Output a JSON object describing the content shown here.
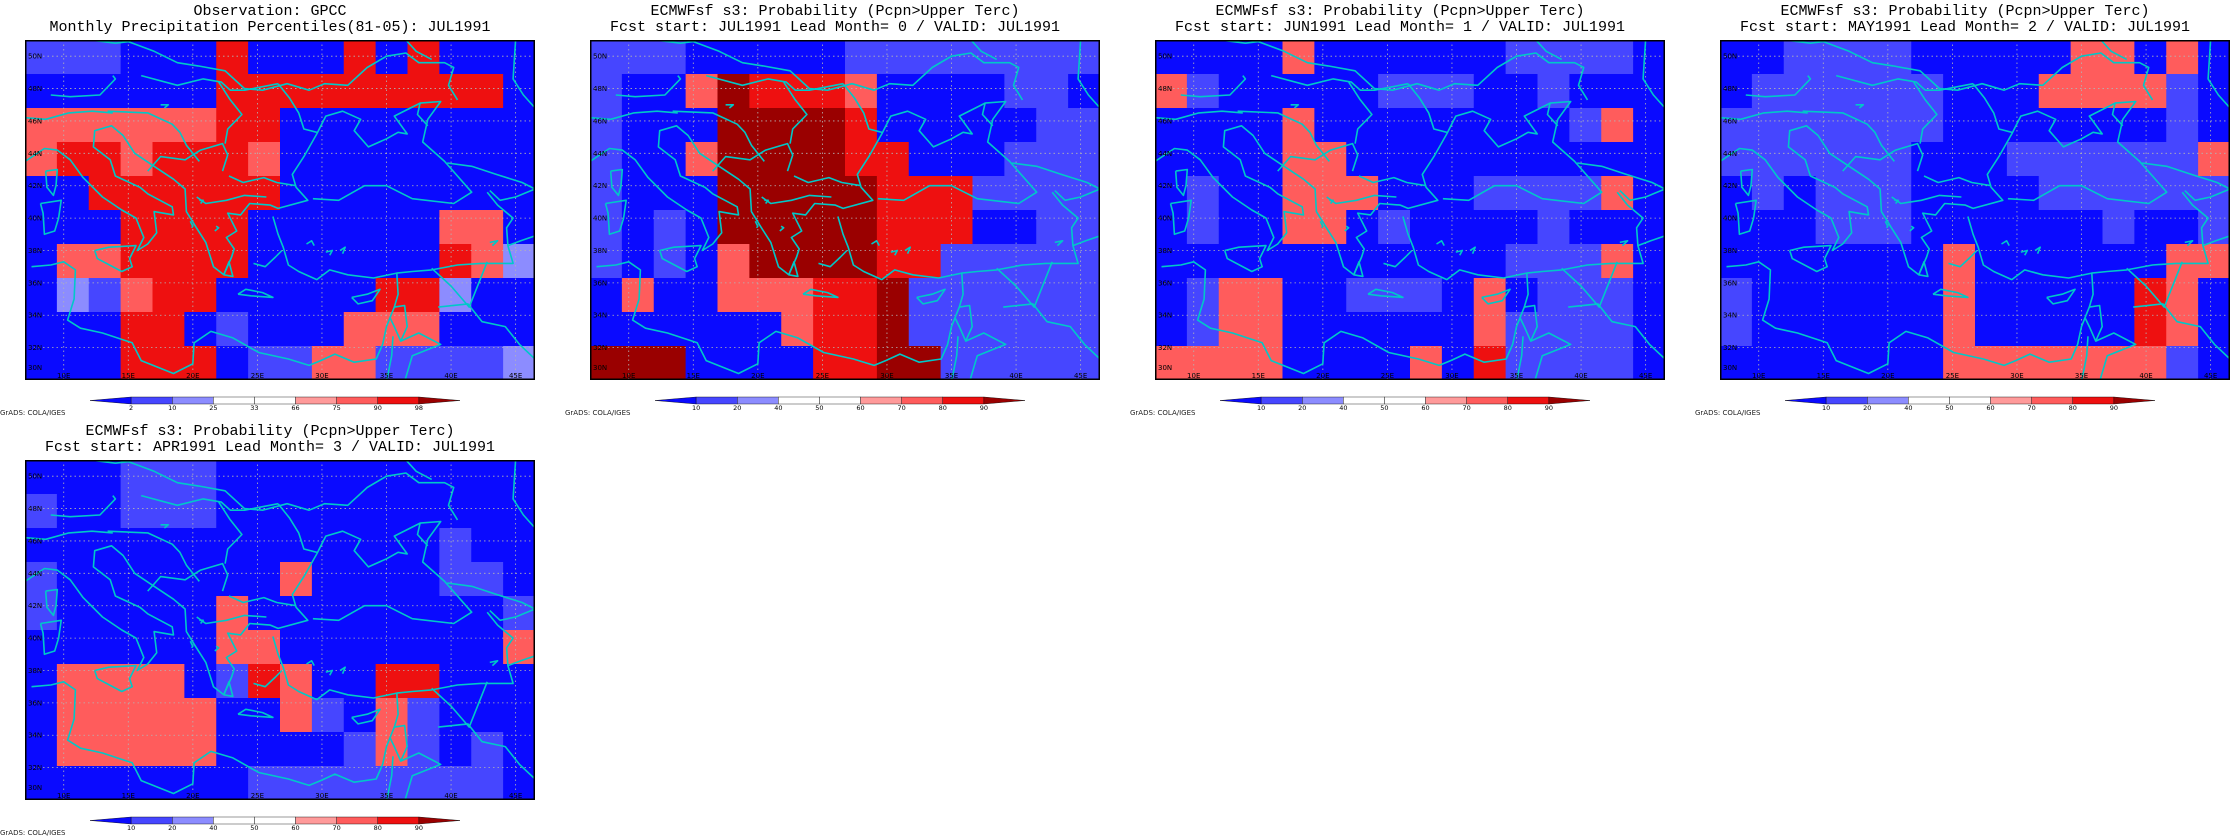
{
  "colors": {
    "coast": "#00c8c8",
    "grid": "#b4b4b4",
    "scale": [
      "#0a0aff",
      "#4646ff",
      "#8c8cff",
      "#ffffff",
      "#ff9a9a",
      "#ff5c5c",
      "#ee1010",
      "#9a0000"
    ]
  },
  "map_ticks": {
    "lon": [
      "10E",
      "15E",
      "20E",
      "25E",
      "30E",
      "35E",
      "40E",
      "45E"
    ],
    "lat": [
      "30N",
      "32N",
      "34N",
      "36N",
      "38N",
      "40N",
      "42N",
      "44N",
      "46N",
      "48N",
      "50N"
    ]
  },
  "credit": "GrADS: COLA/IGES",
  "panels": [
    {
      "id": "obs",
      "title1": "Observation: GPCC",
      "title2": "Monthly Precipitation Percentiles(81-05): JUL1991",
      "colorbar_labels": [
        "2",
        "10",
        "25",
        "33",
        "66",
        "75",
        "90",
        "98"
      ],
      "grid": [
        "1110006000606000",
        "0000006666666660",
        "5555556600000000",
        "5665666500000000",
        "0066666600000000",
        "0006666000000550",
        "0556666000000652",
        "0215660000066200",
        "0006601000555000",
        "0006660115511112"
      ]
    },
    {
      "id": "lead0",
      "title1": "ECMWFsf s3: Probability (Pcpn>Upper Terc)",
      "title2": "Fcst start: JUL1991  Lead Month= 0 / VALID: JUL1991",
      "colorbar_labels": [
        "10",
        "20",
        "40",
        "50",
        "60",
        "70",
        "80",
        "90"
      ],
      "grid": [
        "1110000011111111",
        "1005766650000110",
        "1000777760000011",
        "1005777766000111",
        "1000777776661111",
        "1010777776660011",
        "1010577776611111",
        "0500555667111111",
        "0000005667111111",
        "7770000667711111"
      ]
    },
    {
      "id": "lead1",
      "title1": "ECMWFsf s3: Probability (Pcpn>Upper Terc)",
      "title2": "Fcst start: JUN1991  Lead Month= 1 / VALID: JUL1991",
      "colorbar_labels": [
        "10",
        "20",
        "40",
        "50",
        "60",
        "70",
        "80",
        "90"
      ],
      "grid": [
        "0000500000011110",
        "5100000111001000",
        "0000500000000150",
        "0000550000000000",
        "0100555000111150",
        "0100550100001000",
        "0000000000011150",
        "0155001110501110",
        "0155000000511110",
        "5555000050611110"
      ]
    },
    {
      "id": "lead2",
      "title1": "ECMWFsf s3: Probability (Pcpn>Upper Terc)",
      "title2": "Fcst start: MAY1991  Lead Month= 2 / VALID: JUL1991",
      "colorbar_labels": [
        "10",
        "20",
        "40",
        "50",
        "60",
        "70",
        "80",
        "90"
      ],
      "grid": [
        "0011110000055050",
        "0111111000555510",
        "1111111000000010",
        "1111110001111115",
        "0101110000111111",
        "0001110000001001",
        "0000000500000055",
        "1000000500000650",
        "1000000500000650",
        "0000000555555510"
      ]
    },
    {
      "id": "lead3",
      "title1": "ECMWFsf s3: Probability (Pcpn>Upper Terc)",
      "title2": "Fcst start: APR1991  Lead Month= 3 / VALID: JUL1991",
      "colorbar_labels": [
        "10",
        "20",
        "40",
        "50",
        "60",
        "70",
        "80",
        "90"
      ],
      "grid": [
        "0001110000000000",
        "1001110000000000",
        "0000000000000100",
        "1000000050000110",
        "1000005000000001",
        "0000005500000005",
        "0555501650066000",
        "0555550051051000",
        "0555550000151010",
        "0000000111111110"
      ]
    }
  ]
}
